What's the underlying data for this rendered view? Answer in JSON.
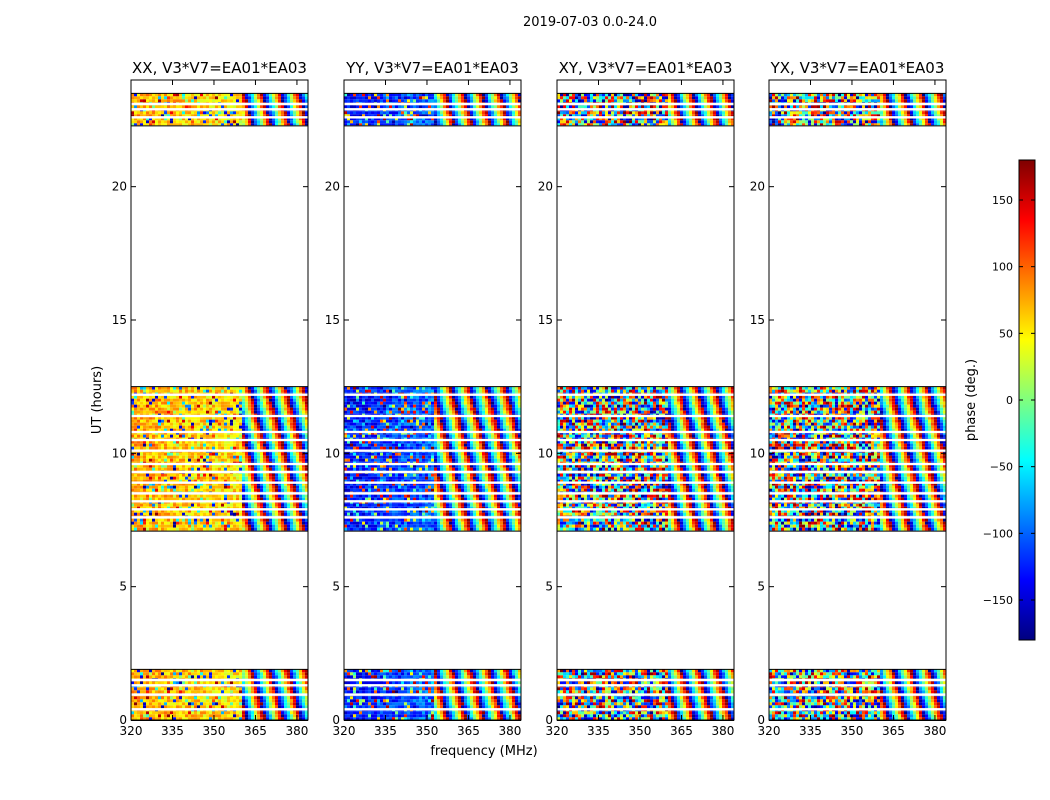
{
  "chart_data": {
    "type": "heatmap",
    "suptitle": "2019-07-03 0.0-24.0",
    "xlabel": "frequency (MHz)",
    "ylabel": "UT (hours)",
    "xlim": [
      320,
      384
    ],
    "ylim": [
      0,
      24
    ],
    "xticks": [
      320,
      335,
      350,
      365,
      380
    ],
    "yticks": [
      0,
      5,
      10,
      15,
      20
    ],
    "colorbar": {
      "label": "phase (deg.)",
      "range": [
        -180,
        180
      ],
      "ticks": [
        150,
        100,
        50,
        0,
        -50,
        -100,
        -150
      ],
      "tick_labels": [
        "150",
        "100",
        "50",
        "0",
        "−50",
        "−100",
        "−150"
      ],
      "colormap": "jet",
      "colors": [
        "#00007f",
        "#0000ff",
        "#007fff",
        "#00ffff",
        "#7fff7f",
        "#ffff00",
        "#ff7f00",
        "#ff0000",
        "#7f0000"
      ]
    },
    "data_blocks": [
      {
        "ut_start": 0.0,
        "ut_end": 1.9
      },
      {
        "ut_start": 7.1,
        "ut_end": 12.5
      },
      {
        "ut_start": 22.3,
        "ut_end": 23.5
      }
    ],
    "gap_rows_ut": [
      0.4,
      0.95,
      1.3,
      1.5,
      7.6,
      7.9,
      8.2,
      8.5,
      8.9,
      9.3,
      9.6,
      10.1,
      10.5,
      10.8,
      11.4,
      12.2,
      22.6,
      22.9,
      23.1
    ],
    "panels": [
      {
        "title": "XX, V3*V7=EA01*EA03",
        "mean_phase": 75,
        "trend_start_mhz": 360,
        "coherent": true,
        "show_ylabel": true,
        "show_xlabel": false
      },
      {
        "title": "YY, V3*V7=EA01*EA03",
        "mean_phase": -135,
        "trend_start_mhz": 352,
        "coherent": true,
        "show_ylabel": false,
        "show_xlabel": true
      },
      {
        "title": "XY, V3*V7=EA01*EA03",
        "mean_phase": 0,
        "trend_start_mhz": 360,
        "coherent": false,
        "show_ylabel": false,
        "show_xlabel": false
      },
      {
        "title": "YX, V3*V7=EA01*EA03",
        "mean_phase": 0,
        "trend_start_mhz": 360,
        "coherent": false,
        "show_ylabel": false,
        "show_xlabel": false
      }
    ]
  }
}
